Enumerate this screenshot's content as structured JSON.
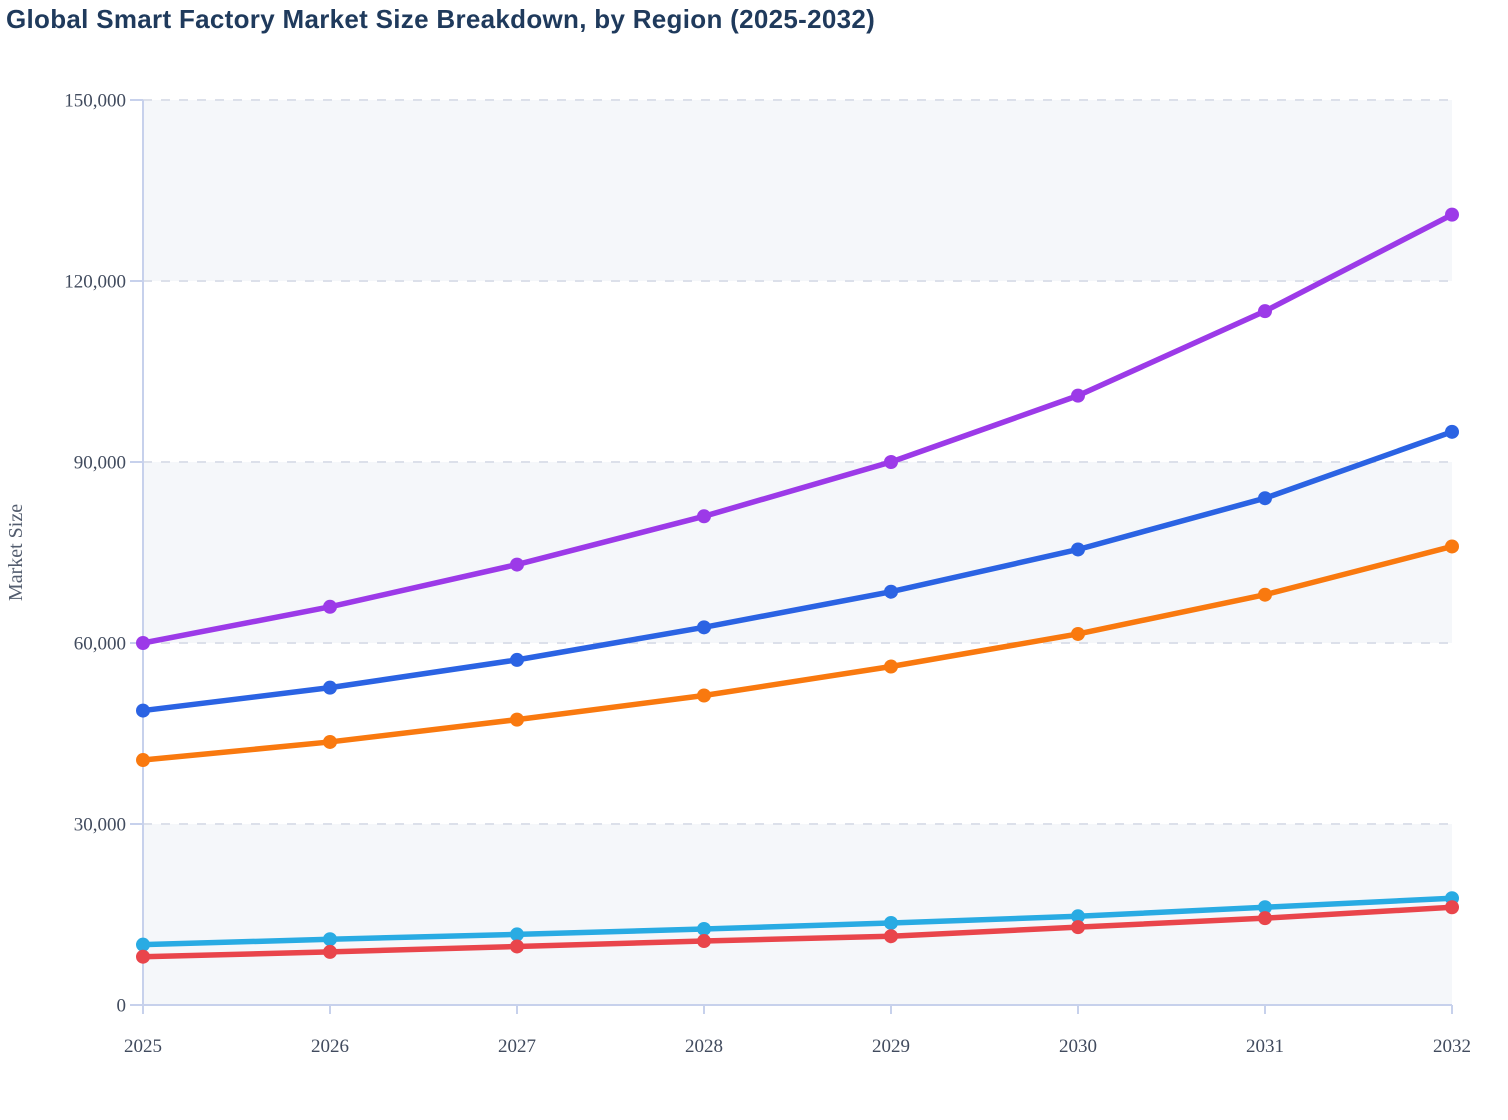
{
  "title": "Global Smart Factory Market Size Breakdown, by Region (2025-2032)",
  "chart_data": {
    "type": "line",
    "title": "Global Smart Factory Market Size Breakdown, by Region (2025-2032)",
    "xlabel": "",
    "ylabel": "Market Size",
    "x": [
      2025,
      2026,
      2027,
      2028,
      2029,
      2030,
      2031,
      2032
    ],
    "series": [
      {
        "name": "purple-series",
        "color": "#9c3ae8",
        "values": [
          60000,
          66000,
          73000,
          81000,
          90000,
          101000,
          115000,
          131000
        ]
      },
      {
        "name": "blue-series",
        "color": "#2b63e3",
        "values": [
          48800,
          52600,
          57200,
          62600,
          68500,
          75500,
          84000,
          95000
        ]
      },
      {
        "name": "orange-series",
        "color": "#f9790f",
        "values": [
          40600,
          43600,
          47300,
          51300,
          56100,
          61500,
          68000,
          76000
        ]
      },
      {
        "name": "cyan-series",
        "color": "#29abe3",
        "values": [
          10000,
          10900,
          11700,
          12600,
          13600,
          14700,
          16200,
          17700
        ]
      },
      {
        "name": "red-series",
        "color": "#e9454b",
        "values": [
          8000,
          8800,
          9700,
          10600,
          11400,
          12900,
          14400,
          16200
        ]
      }
    ],
    "ylim": [
      0,
      150000
    ],
    "y_ticks": [
      0,
      30000,
      60000,
      90000,
      120000,
      150000
    ],
    "y_tick_labels": [
      "0",
      "30,000",
      "60,000",
      "90,000",
      "120,000",
      "150,000"
    ],
    "grid": "dashed-horizontal",
    "legend_position": "none",
    "marker": "circle",
    "band_fill_alternating": [
      "#f5f7fa",
      "#ffffff"
    ]
  },
  "colors": {
    "title_text": "#1f3a5c",
    "axis_line": "#c7d1ec",
    "grid_line": "#dce0ea",
    "tick_text": "#414b5e",
    "axis_title_text": "#525c6e",
    "background": "#ffffff"
  }
}
